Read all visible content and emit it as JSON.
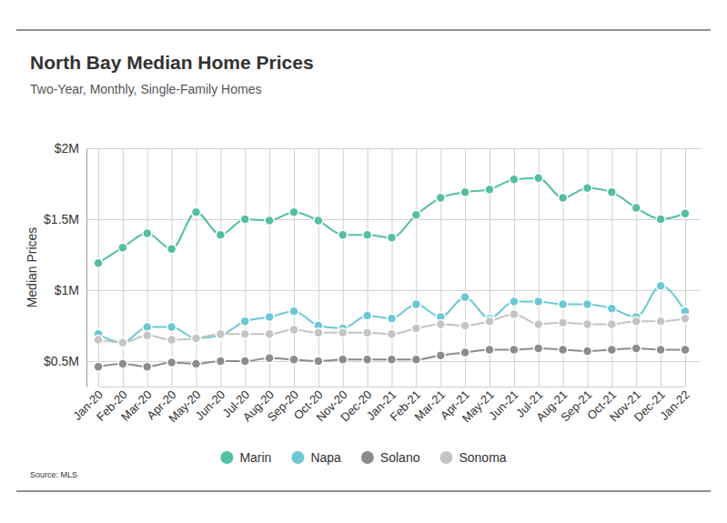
{
  "chart_data": {
    "type": "line",
    "title": "North Bay Median Home Prices",
    "subtitle": "Two-Year, Monthly, Single-Family Homes",
    "y_label": "Median Prices",
    "source": "Source: MLS",
    "categories": [
      "Jan-20",
      "Feb-20",
      "Mar-20",
      "Apr-20",
      "May-20",
      "Jun-20",
      "Jul-20",
      "Aug-20",
      "Sep-20",
      "Oct-20",
      "Nov-20",
      "Dec-20",
      "Jan-21",
      "Feb-21",
      "Mar-21",
      "Apr-21",
      "May-21",
      "Jun-21",
      "Jul-21",
      "Aug-21",
      "Sep-21",
      "Oct-21",
      "Nov-21",
      "Dec-21",
      "Jan-22"
    ],
    "series": [
      {
        "name": "Marin",
        "color": "#52bfa3",
        "values": [
          1.19,
          1.3,
          1.4,
          1.29,
          1.55,
          1.39,
          1.5,
          1.49,
          1.55,
          1.49,
          1.39,
          1.39,
          1.37,
          1.53,
          1.65,
          1.69,
          1.71,
          1.78,
          1.79,
          1.65,
          1.72,
          1.69,
          1.58,
          1.5,
          1.54
        ]
      },
      {
        "name": "Napa",
        "color": "#6cc8d5",
        "values": [
          0.69,
          0.63,
          0.74,
          0.74,
          0.66,
          0.68,
          0.78,
          0.81,
          0.85,
          0.75,
          0.73,
          0.82,
          0.8,
          0.9,
          0.81,
          0.95,
          0.8,
          0.92,
          0.92,
          0.9,
          0.9,
          0.87,
          0.81,
          1.03,
          0.85
        ]
      },
      {
        "name": "Solano",
        "color": "#8c8c8c",
        "values": [
          0.46,
          0.48,
          0.46,
          0.49,
          0.48,
          0.5,
          0.5,
          0.52,
          0.51,
          0.5,
          0.51,
          0.51,
          0.51,
          0.51,
          0.54,
          0.56,
          0.58,
          0.58,
          0.59,
          0.58,
          0.57,
          0.58,
          0.59,
          0.58,
          0.58
        ]
      },
      {
        "name": "Sonoma",
        "color": "#c4c4c4",
        "values": [
          0.65,
          0.63,
          0.68,
          0.65,
          0.66,
          0.69,
          0.69,
          0.69,
          0.72,
          0.7,
          0.7,
          0.7,
          0.69,
          0.73,
          0.76,
          0.75,
          0.78,
          0.83,
          0.76,
          0.77,
          0.76,
          0.76,
          0.78,
          0.78,
          0.8
        ]
      }
    ],
    "ylim": [
      0.32,
      2
    ],
    "yticks": [
      {
        "value": 0.5,
        "label": "$0.5M"
      },
      {
        "value": 1,
        "label": "$1M"
      },
      {
        "value": 1.5,
        "label": "$1.5M"
      },
      {
        "value": 2,
        "label": "$2M"
      }
    ],
    "grid": true,
    "legend": "bottom",
    "marker": "circle"
  }
}
